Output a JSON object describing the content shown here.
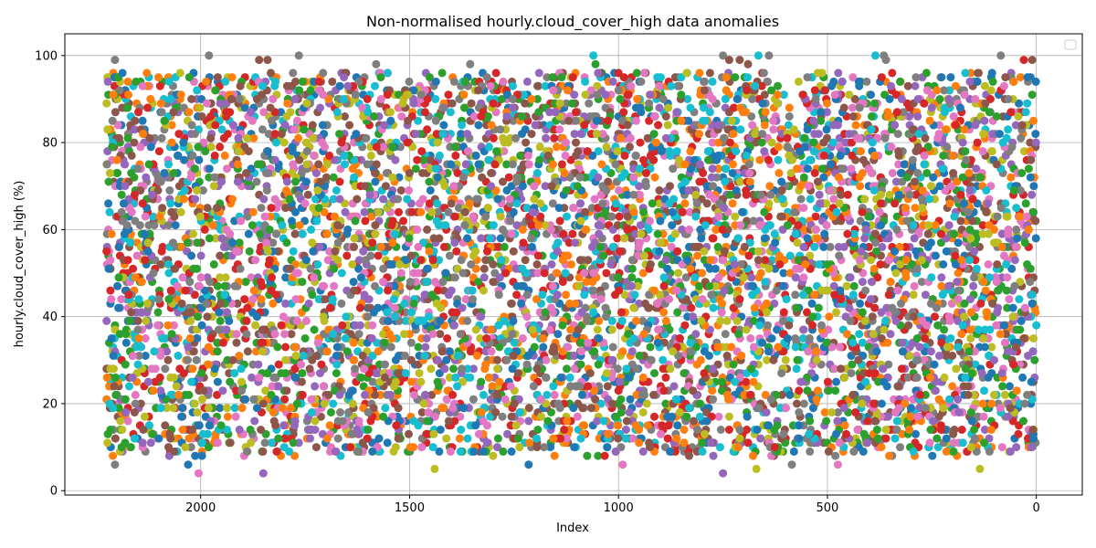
{
  "chart_data": {
    "type": "scatter",
    "title": "Non-normalised hourly.cloud_cover_high data anomalies",
    "xlabel": "Index",
    "ylabel": "hourly.cloud_cover_high (%)",
    "xlim": [
      2325,
      -110
    ],
    "ylim": [
      -1,
      105
    ],
    "x_inverted": true,
    "xticks": [
      2000,
      1500,
      1000,
      500,
      0
    ],
    "xtick_labels": [
      "2000",
      "1500",
      "1000",
      "500",
      "0"
    ],
    "yticks": [
      0,
      20,
      40,
      60,
      80,
      100
    ],
    "ytick_labels": [
      "0",
      "20",
      "40",
      "60",
      "80",
      "100"
    ],
    "grid": true,
    "legend": "top-right (empty)",
    "index_range": [
      0,
      2225
    ],
    "value_range": [
      4,
      100
    ],
    "typical_value_band": [
      8,
      96
    ],
    "palette": [
      "#1f77b4",
      "#ff7f0e",
      "#2ca02c",
      "#d62728",
      "#9467bd",
      "#8c564b",
      "#e377c2",
      "#7f7f7f",
      "#bcbd22",
      "#17becf"
    ],
    "outliers": [
      {
        "x": 2205,
        "y": 99,
        "color": "#7f7f7f"
      },
      {
        "x": 1980,
        "y": 100,
        "color": "#7f7f7f"
      },
      {
        "x": 1860,
        "y": 99,
        "color": "#8c564b"
      },
      {
        "x": 1840,
        "y": 99,
        "color": "#8c564b"
      },
      {
        "x": 1765,
        "y": 100,
        "color": "#7f7f7f"
      },
      {
        "x": 1580,
        "y": 98,
        "color": "#7f7f7f"
      },
      {
        "x": 1355,
        "y": 98,
        "color": "#7f7f7f"
      },
      {
        "x": 1060,
        "y": 100,
        "color": "#17becf"
      },
      {
        "x": 1055,
        "y": 98,
        "color": "#2ca02c"
      },
      {
        "x": 750,
        "y": 100,
        "color": "#7f7f7f"
      },
      {
        "x": 735,
        "y": 99,
        "color": "#8c564b"
      },
      {
        "x": 710,
        "y": 99,
        "color": "#8c564b"
      },
      {
        "x": 690,
        "y": 98,
        "color": "#8c564b"
      },
      {
        "x": 665,
        "y": 100,
        "color": "#17becf"
      },
      {
        "x": 640,
        "y": 100,
        "color": "#7f7f7f"
      },
      {
        "x": 385,
        "y": 100,
        "color": "#17becf"
      },
      {
        "x": 365,
        "y": 100,
        "color": "#7f7f7f"
      },
      {
        "x": 360,
        "y": 99,
        "color": "#7f7f7f"
      },
      {
        "x": 85,
        "y": 100,
        "color": "#7f7f7f"
      },
      {
        "x": 30,
        "y": 99,
        "color": "#d62728"
      },
      {
        "x": 10,
        "y": 99,
        "color": "#8c564b"
      },
      {
        "x": 2005,
        "y": 4,
        "color": "#e377c2"
      },
      {
        "x": 1850,
        "y": 4,
        "color": "#9467bd"
      },
      {
        "x": 1440,
        "y": 5,
        "color": "#bcbd22"
      },
      {
        "x": 1215,
        "y": 6,
        "color": "#1f77b4"
      },
      {
        "x": 990,
        "y": 6,
        "color": "#e377c2"
      },
      {
        "x": 750,
        "y": 4,
        "color": "#9467bd"
      },
      {
        "x": 670,
        "y": 5,
        "color": "#bcbd22"
      },
      {
        "x": 585,
        "y": 6,
        "color": "#7f7f7f"
      },
      {
        "x": 475,
        "y": 6,
        "color": "#e377c2"
      },
      {
        "x": 135,
        "y": 5,
        "color": "#bcbd22"
      },
      {
        "x": 2205,
        "y": 6,
        "color": "#7f7f7f"
      },
      {
        "x": 2030,
        "y": 6,
        "color": "#1f77b4"
      }
    ]
  }
}
